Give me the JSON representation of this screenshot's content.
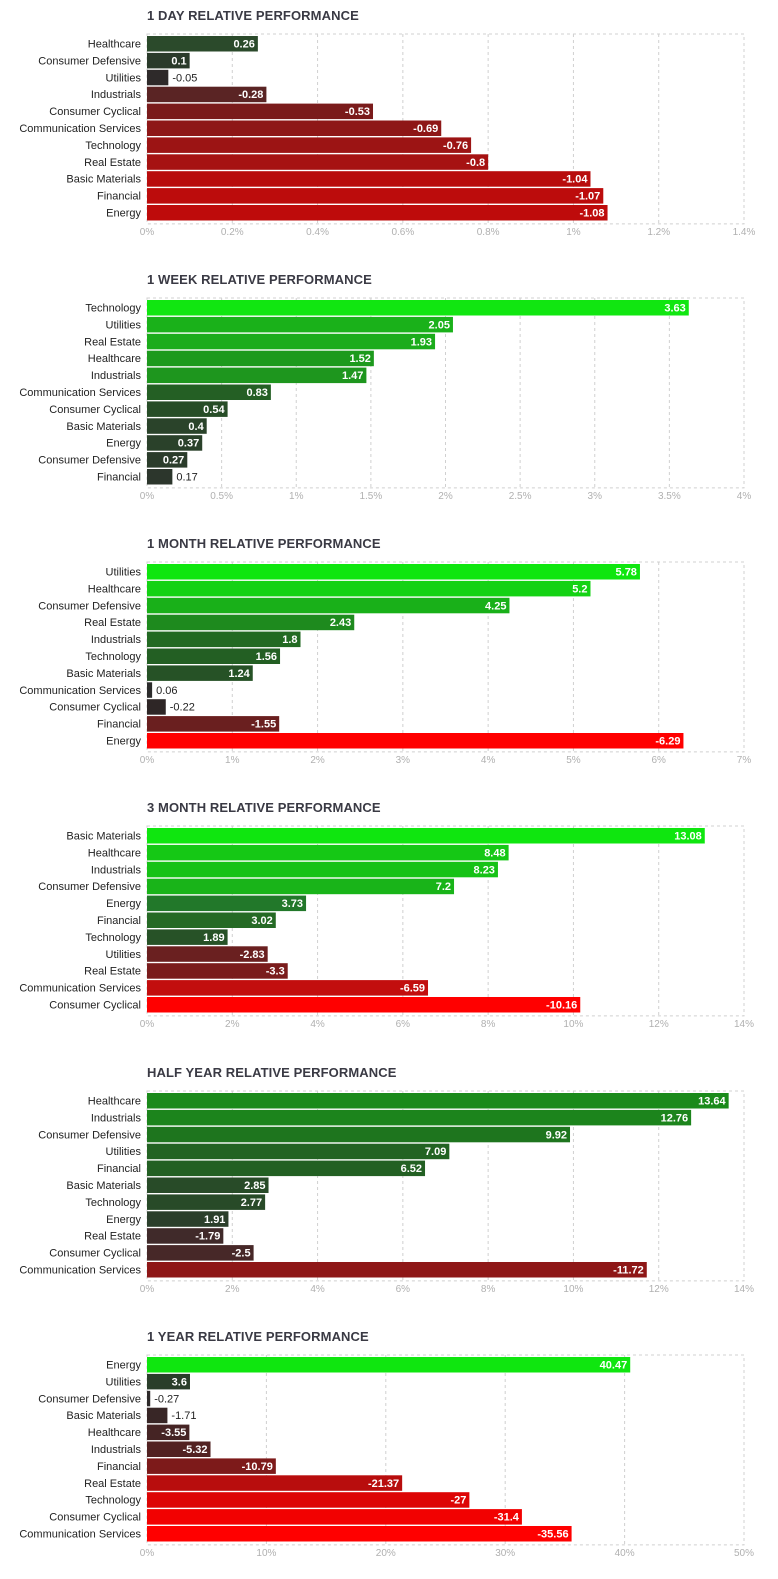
{
  "chart_data": [
    {
      "type": "bar",
      "orientation": "horizontal",
      "title": "1 DAY RELATIVE PERFORMANCE",
      "categories": [
        "Healthcare",
        "Consumer Defensive",
        "Utilities",
        "Industrials",
        "Consumer Cyclical",
        "Communication Services",
        "Technology",
        "Real Estate",
        "Basic Materials",
        "Financial",
        "Energy"
      ],
      "values": [
        0.26,
        0.1,
        -0.05,
        -0.28,
        -0.53,
        -0.69,
        -0.76,
        -0.8,
        -1.04,
        -1.07,
        -1.08
      ],
      "value_labels": [
        "0.26",
        "0.1",
        "-0.05",
        "-0.28",
        "-0.53",
        "-0.69",
        "-0.76",
        "-0.8",
        "-1.04",
        "-1.07",
        "-1.08"
      ],
      "colors": [
        "#2b4a2b",
        "#2a3a2a",
        "#2e2a2a",
        "#5a2424",
        "#7a1b1b",
        "#8e1717",
        "#9c1414",
        "#a61212",
        "#b80d0d",
        "#bc0c0c",
        "#be0b0b"
      ],
      "xlim": [
        0,
        1.4
      ],
      "xticks": [
        "0%",
        "0.2%",
        "0.4%",
        "0.6%",
        "0.8%",
        "1%",
        "1.2%",
        "1.4%"
      ]
    },
    {
      "type": "bar",
      "orientation": "horizontal",
      "title": "1 WEEK RELATIVE PERFORMANCE",
      "categories": [
        "Technology",
        "Utilities",
        "Real Estate",
        "Healthcare",
        "Industrials",
        "Communication Services",
        "Consumer Cyclical",
        "Basic Materials",
        "Energy",
        "Consumer Defensive",
        "Financial"
      ],
      "values": [
        3.63,
        2.05,
        1.93,
        1.52,
        1.47,
        0.83,
        0.54,
        0.4,
        0.37,
        0.27,
        0.17
      ],
      "value_labels": [
        "3.63",
        "2.05",
        "1.93",
        "1.52",
        "1.47",
        "0.83",
        "0.54",
        "0.4",
        "0.37",
        "0.27",
        "0.17"
      ],
      "colors": [
        "#11e611",
        "#1ab11a",
        "#1bac1b",
        "#1d9a1d",
        "#1e961e",
        "#245f24",
        "#274d27",
        "#2a432a",
        "#2a412a",
        "#2b3c2b",
        "#2c362c"
      ],
      "xlim": [
        0,
        4
      ],
      "xticks": [
        "0%",
        "0.5%",
        "1%",
        "1.5%",
        "2%",
        "2.5%",
        "3%",
        "3.5%",
        "4%"
      ]
    },
    {
      "type": "bar",
      "orientation": "horizontal",
      "title": "1 MONTH RELATIVE PERFORMANCE",
      "categories": [
        "Utilities",
        "Healthcare",
        "Consumer Defensive",
        "Real Estate",
        "Industrials",
        "Technology",
        "Basic Materials",
        "Communication Services",
        "Consumer Cyclical",
        "Financial",
        "Energy"
      ],
      "values": [
        5.78,
        5.2,
        4.25,
        2.43,
        1.8,
        1.56,
        1.24,
        0.06,
        -0.22,
        -1.55,
        -6.29
      ],
      "value_labels": [
        "5.78",
        "5.2",
        "4.25",
        "2.43",
        "1.8",
        "1.56",
        "1.24",
        "0.06",
        "-0.22",
        "-1.55",
        "-6.29"
      ],
      "colors": [
        "#0fe60f",
        "#14d214",
        "#19b019",
        "#1e8a1e",
        "#226a22",
        "#235f23",
        "#265226",
        "#2c2c2c",
        "#2e2626",
        "#6a1f1f",
        "#ff0000"
      ],
      "xlim": [
        0,
        7
      ],
      "xticks": [
        "0%",
        "1%",
        "2%",
        "3%",
        "4%",
        "5%",
        "6%",
        "7%"
      ]
    },
    {
      "type": "bar",
      "orientation": "horizontal",
      "title": "3 MONTH RELATIVE PERFORMANCE",
      "categories": [
        "Basic Materials",
        "Healthcare",
        "Industrials",
        "Consumer Defensive",
        "Energy",
        "Financial",
        "Technology",
        "Utilities",
        "Real Estate",
        "Communication Services",
        "Consumer Cyclical"
      ],
      "values": [
        13.08,
        8.48,
        8.23,
        7.2,
        3.73,
        3.02,
        1.89,
        -2.83,
        -3.3,
        -6.59,
        -10.16
      ],
      "value_labels": [
        "13.08",
        "8.48",
        "8.23",
        "7.2",
        "3.73",
        "3.02",
        "1.89",
        "-2.83",
        "-3.3",
        "-6.59",
        "-10.16"
      ],
      "colors": [
        "#0fe60f",
        "#15c815",
        "#16c216",
        "#19b419",
        "#22782a",
        "#256a25",
        "#275227",
        "#6a2020",
        "#7a1c1c",
        "#c20e0e",
        "#ff0000"
      ],
      "xlim": [
        0,
        14
      ],
      "xticks": [
        "0%",
        "2%",
        "4%",
        "6%",
        "8%",
        "10%",
        "12%",
        "14%"
      ]
    },
    {
      "type": "bar",
      "orientation": "horizontal",
      "title": "HALF YEAR RELATIVE PERFORMANCE",
      "categories": [
        "Healthcare",
        "Industrials",
        "Consumer Defensive",
        "Utilities",
        "Financial",
        "Basic Materials",
        "Technology",
        "Energy",
        "Real Estate",
        "Consumer Cyclical",
        "Communication Services"
      ],
      "values": [
        13.64,
        12.76,
        9.92,
        7.09,
        6.52,
        2.85,
        2.77,
        1.91,
        -1.79,
        -2.5,
        -11.72
      ],
      "value_labels": [
        "13.64",
        "12.76",
        "9.92",
        "7.09",
        "6.52",
        "2.85",
        "2.77",
        "1.91",
        "-1.79",
        "-2.5",
        "-11.72"
      ],
      "colors": [
        "#1a8a1a",
        "#1c841c",
        "#1e751e",
        "#226322",
        "#236023",
        "#284b28",
        "#284a28",
        "#2b3f2b",
        "#402a2a",
        "#472828",
        "#8e1717"
      ],
      "xlim": [
        0,
        14
      ],
      "xticks": [
        "0%",
        "2%",
        "4%",
        "6%",
        "8%",
        "10%",
        "12%",
        "14%"
      ]
    },
    {
      "type": "bar",
      "orientation": "horizontal",
      "title": "1 YEAR RELATIVE PERFORMANCE",
      "categories": [
        "Energy",
        "Utilities",
        "Consumer Defensive",
        "Basic Materials",
        "Healthcare",
        "Industrials",
        "Financial",
        "Real Estate",
        "Technology",
        "Consumer Cyclical",
        "Communication Services"
      ],
      "values": [
        40.47,
        3.6,
        -0.27,
        -1.71,
        -3.55,
        -5.32,
        -10.79,
        -21.37,
        -27,
        -31.4,
        -35.56
      ],
      "value_labels": [
        "40.47",
        "3.6",
        "-0.27",
        "-1.71",
        "-3.55",
        "-5.32",
        "-10.79",
        "-21.37",
        "-27",
        "-31.4",
        "-35.56"
      ],
      "colors": [
        "#0fe60f",
        "#2a3e2a",
        "#2e2a2a",
        "#382626",
        "#452424",
        "#522222",
        "#7d1a1a",
        "#b80d0d",
        "#dd0505",
        "#f20101",
        "#ff0000"
      ],
      "xlim": [
        0,
        50
      ],
      "xticks": [
        "0%",
        "10%",
        "20%",
        "30%",
        "40%",
        "50%"
      ]
    }
  ]
}
